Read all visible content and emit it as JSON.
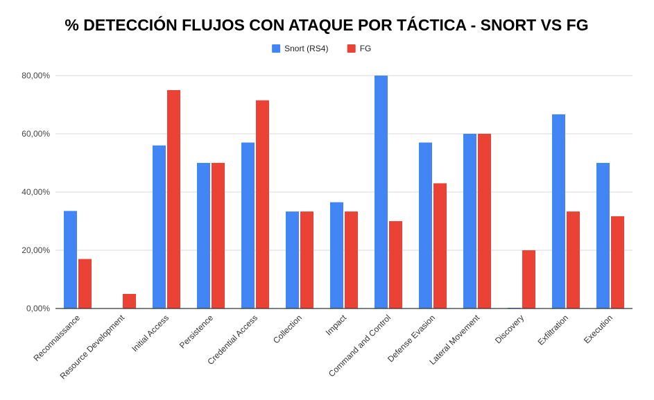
{
  "chart_data": {
    "type": "bar",
    "title": "% DETECCIÓN FLUJOS CON ATAQUE POR TÁCTICA - SNORT VS FG",
    "xlabel": "",
    "ylabel": "",
    "categories": [
      "Reconnaissance",
      "Resource Development",
      "Initial Access",
      "Persistence",
      "Credential Access",
      "Collection",
      "Impact",
      "Command and Control",
      "Defense Evasion",
      "Lateral Movement",
      "Discovery",
      "Exfiltration",
      "Execution"
    ],
    "series": [
      {
        "name": "Snort (RS4)",
        "color": "#4285f4",
        "values": [
          33.5,
          0,
          56,
          50,
          57,
          33.3,
          36.5,
          80,
          57,
          60,
          0.2,
          66.7,
          50
        ]
      },
      {
        "name": "FG",
        "color": "#ea4335",
        "values": [
          17,
          5,
          75,
          50,
          71.5,
          33.3,
          33.3,
          30,
          43,
          60,
          20,
          33.3,
          31.7
        ]
      }
    ],
    "ylim": [
      0,
      80
    ],
    "yticks": [
      0,
      20,
      40,
      60,
      80
    ],
    "ytick_labels": [
      "0,00%",
      "20,00%",
      "40,00%",
      "60,00%",
      "80,00%"
    ],
    "grid": true,
    "legend_position": "top-center"
  }
}
